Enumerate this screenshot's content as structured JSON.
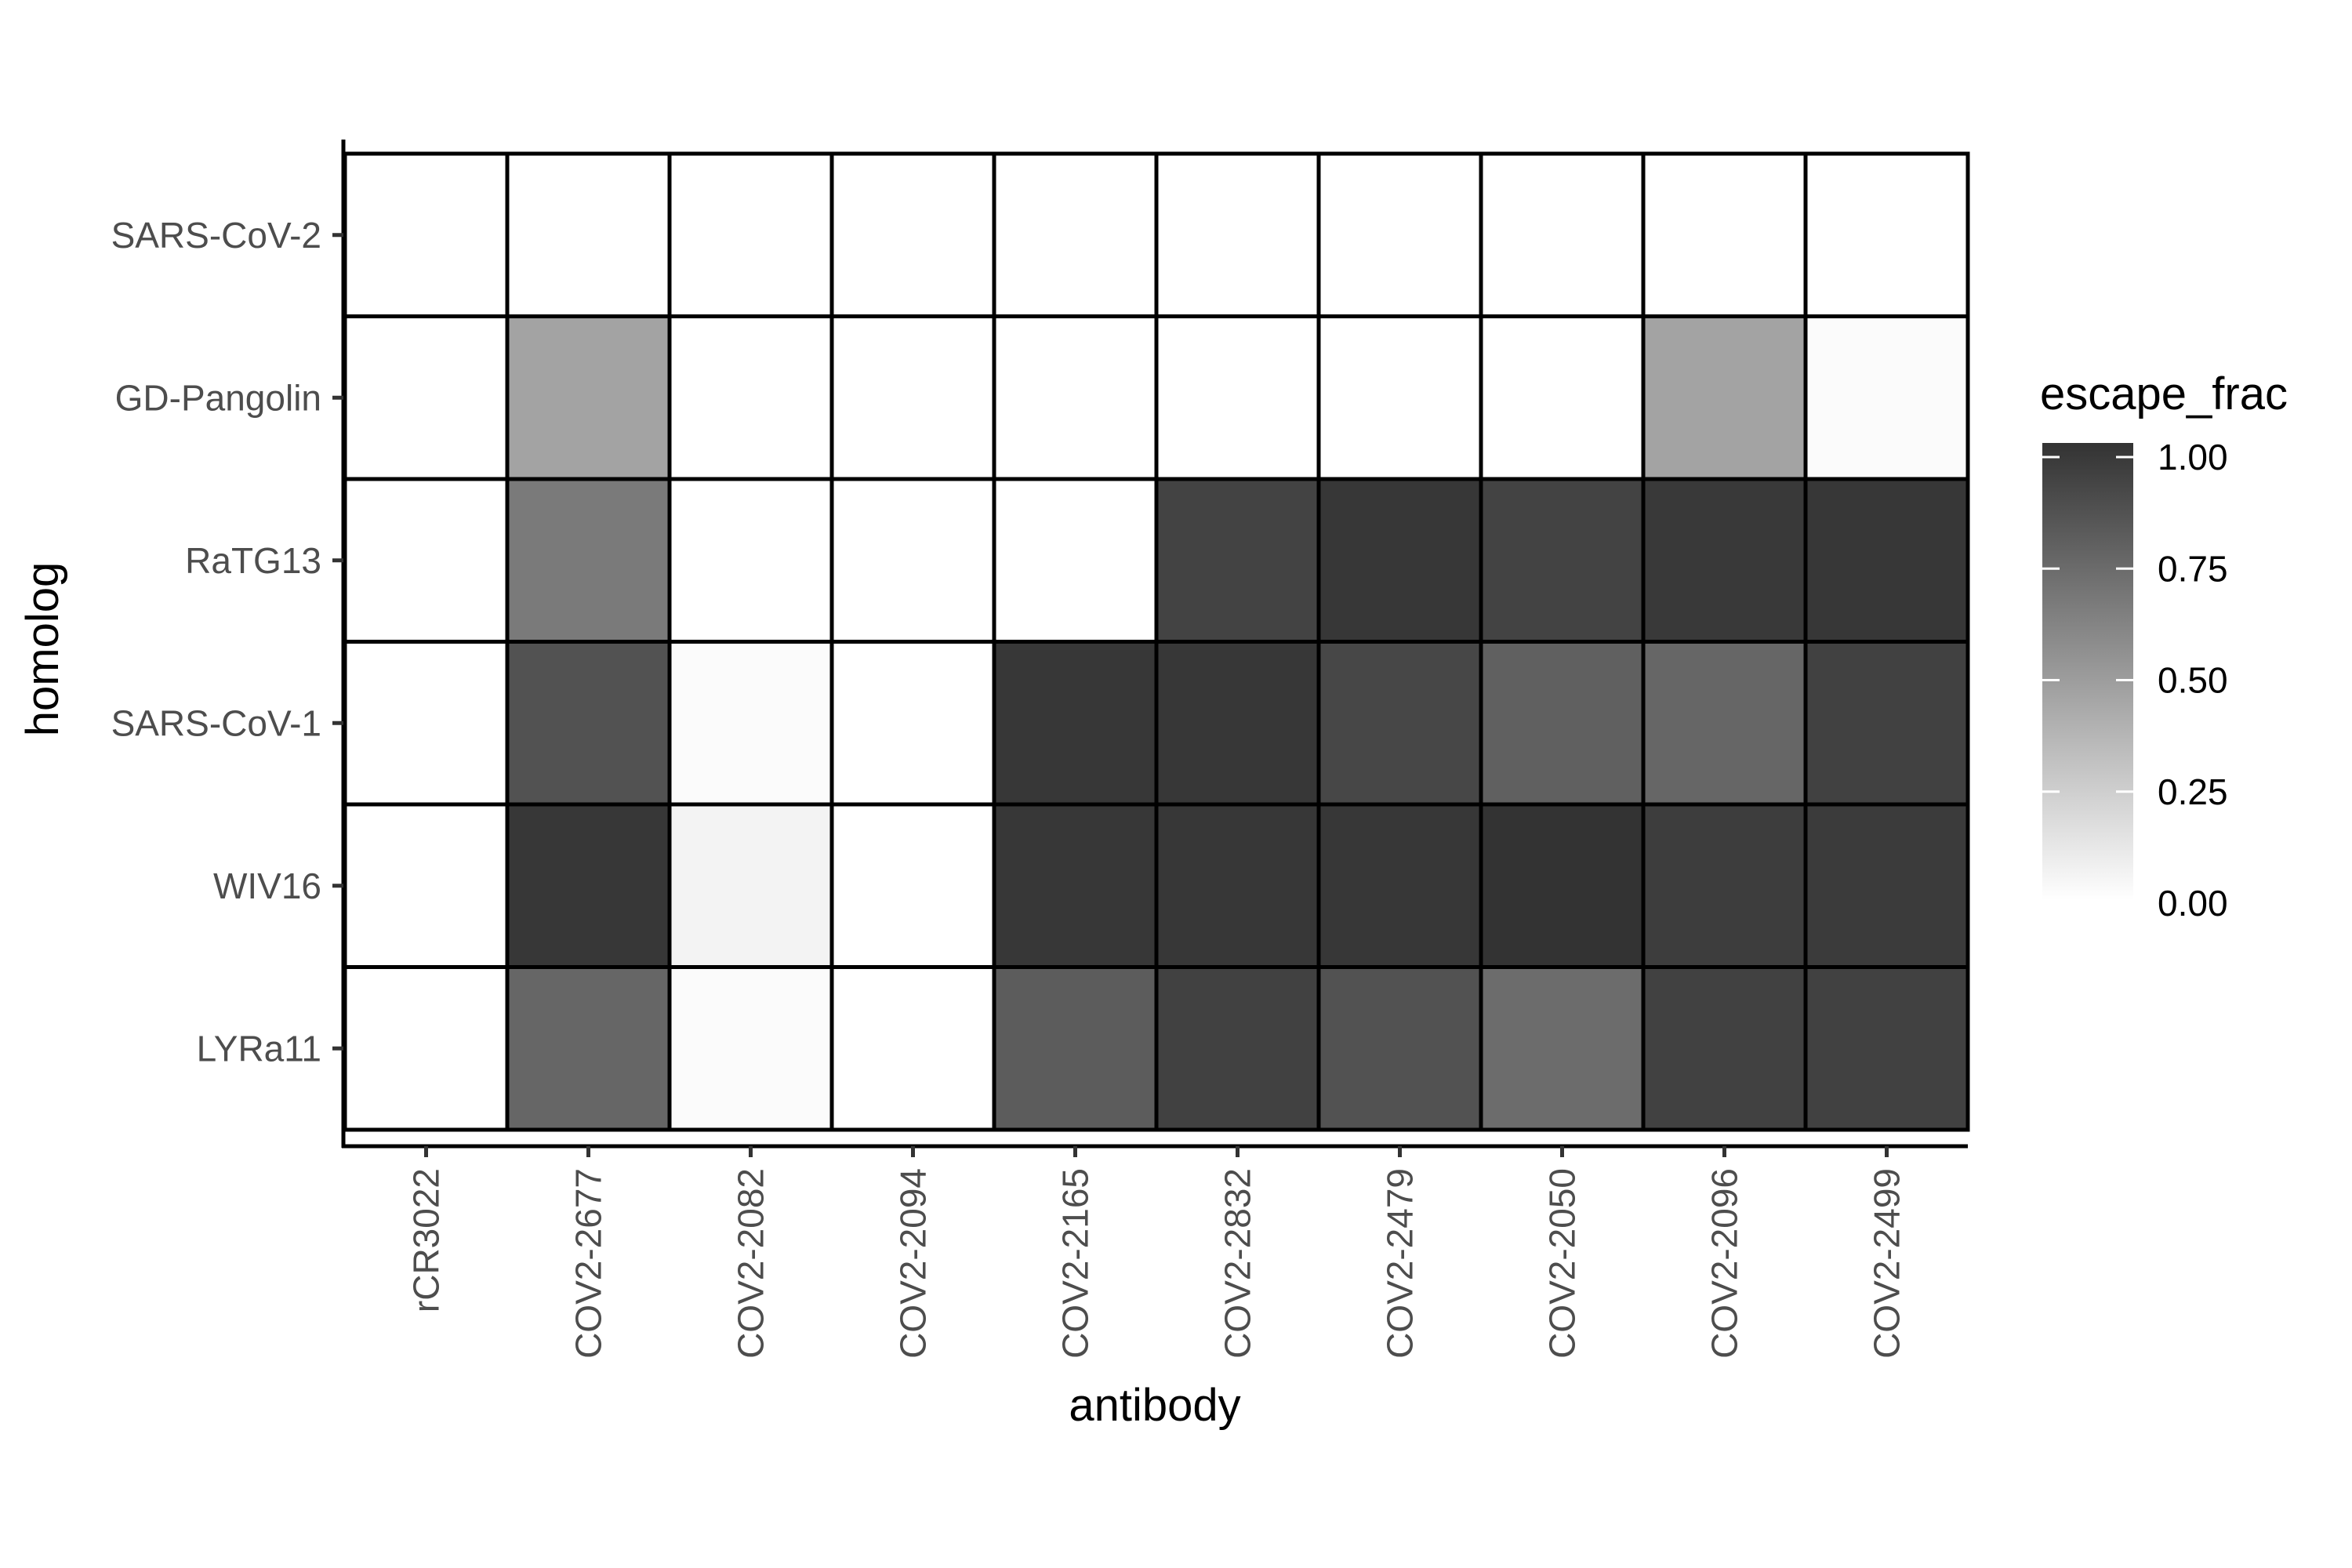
{
  "chart_data": {
    "type": "heatmap",
    "title": "",
    "xlabel": "antibody",
    "ylabel": "homolog",
    "x_categories": [
      "rCR3022",
      "COV2-2677",
      "COV2-2082",
      "COV2-2094",
      "COV2-2165",
      "COV2-2832",
      "COV2-2479",
      "COV2-2050",
      "COV2-2096",
      "COV2-2499"
    ],
    "y_categories": [
      "SARS-CoV-2",
      "GD-Pangolin",
      "RaTG13",
      "SARS-CoV-1",
      "WIV16",
      "LYRa11"
    ],
    "values": [
      [
        0.0,
        0.0,
        0.0,
        0.0,
        0.0,
        0.0,
        0.0,
        0.0,
        0.0,
        0.0
      ],
      [
        0.0,
        0.45,
        0.0,
        0.0,
        0.0,
        0.0,
        0.0,
        0.0,
        0.45,
        0.02
      ],
      [
        0.0,
        0.65,
        0.0,
        0.0,
        0.0,
        0.92,
        0.98,
        0.92,
        0.97,
        0.98
      ],
      [
        0.0,
        0.85,
        0.02,
        0.0,
        0.98,
        0.98,
        0.9,
        0.78,
        0.75,
        0.93
      ],
      [
        0.0,
        0.98,
        0.06,
        0.0,
        0.98,
        0.98,
        0.98,
        1.0,
        0.95,
        0.96
      ],
      [
        0.0,
        0.75,
        0.02,
        0.0,
        0.8,
        0.93,
        0.85,
        0.72,
        0.93,
        0.93
      ]
    ],
    "legend": {
      "title": "escape_frac",
      "breaks": [
        1.0,
        0.75,
        0.5,
        0.25,
        0.0
      ],
      "labels": [
        "1.00",
        "0.75",
        "0.50",
        "0.25",
        "0.00"
      ],
      "range": [
        0,
        1
      ],
      "low_color": "#ffffff",
      "high_color": "#333333",
      "placement": "right"
    },
    "grid": false,
    "cell_border_color": "#000000"
  }
}
